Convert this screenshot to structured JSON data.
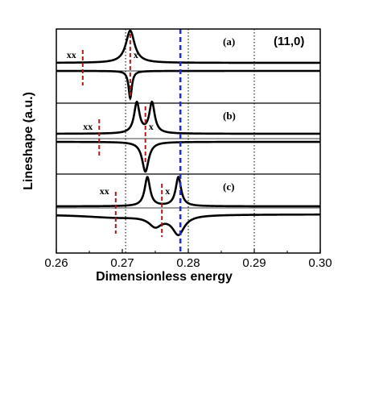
{
  "chart_data": {
    "type": "line",
    "title": "",
    "system_label": "(11,0)",
    "xlabel": "Dimensionless energy",
    "ylabel": "Lineshape (a.u.)",
    "xlim": [
      0.26,
      0.3
    ],
    "xticks": [
      "0.26",
      "0.27",
      "0.28",
      "0.29",
      "0.30"
    ],
    "xtick_values": [
      0.26,
      0.27,
      0.28,
      0.29,
      0.3
    ],
    "reference_lines": [
      {
        "x": 0.2705,
        "style": "dotted",
        "color": "#000000"
      },
      {
        "x": 0.28,
        "style": "dotted",
        "color": "#000000"
      },
      {
        "x": 0.29,
        "style": "dotted",
        "color": "#000000"
      },
      {
        "x": 0.2788,
        "style": "dashed",
        "color": "#1f2fd0"
      }
    ],
    "panels": [
      {
        "label": "(a)",
        "upper": {
          "baseline": 0.0,
          "peaks": [
            {
              "x0": 0.2712,
              "gamma": 0.0008,
              "amp": 1.0
            }
          ]
        },
        "lower": {
          "baseline": 0.0,
          "peaks": [
            {
              "x0": 0.2712,
              "gamma": 0.0003,
              "amp": -1.0
            }
          ]
        },
        "markers": [
          {
            "label": "xx",
            "x": 0.264,
            "color": "#b01818"
          },
          {
            "label": "x",
            "x": 0.2712,
            "color": "#b01818"
          }
        ]
      },
      {
        "label": "(b)",
        "upper": {
          "baseline": 0.0,
          "peaks": [
            {
              "x0": 0.2722,
              "gamma": 0.0005,
              "amp": 1.0
            },
            {
              "x0": 0.2745,
              "gamma": 0.0005,
              "amp": 1.0
            }
          ]
        },
        "lower": {
          "baseline": 0.0,
          "peaks": [
            {
              "x0": 0.2735,
              "gamma": 0.0006,
              "amp": -1.0
            }
          ]
        },
        "markers": [
          {
            "label": "xx",
            "x": 0.2665,
            "color": "#b01818"
          },
          {
            "label": "x",
            "x": 0.2735,
            "color": "#b01818"
          }
        ]
      },
      {
        "label": "(c)",
        "upper": {
          "baseline": 0.0,
          "peaks": [
            {
              "x0": 0.2738,
              "gamma": 0.0005,
              "amp": 1.0
            },
            {
              "x0": 0.2785,
              "gamma": 0.0005,
              "amp": 1.0
            }
          ]
        },
        "lower": {
          "baseline": 0.0,
          "peaks": [
            {
              "x0": 0.269,
              "gamma": 0.006,
              "amp": -0.1
            },
            {
              "x0": 0.275,
              "gamma": 0.0012,
              "amp": -0.35
            },
            {
              "x0": 0.2785,
              "gamma": 0.0011,
              "amp": -0.65
            }
          ]
        },
        "markers": [
          {
            "label": "xx",
            "x": 0.269,
            "color": "#b01818"
          },
          {
            "label": "x",
            "x": 0.276,
            "color": "#b01818"
          }
        ]
      }
    ],
    "grid": false,
    "legend": "none"
  }
}
